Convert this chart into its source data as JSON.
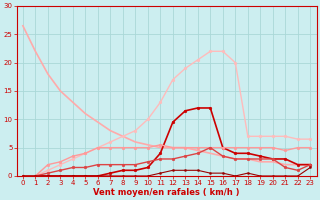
{
  "xlabel": "Vent moyen/en rafales ( km/h )",
  "xlim": [
    -0.5,
    23.5
  ],
  "ylim": [
    0,
    30
  ],
  "yticks": [
    0,
    5,
    10,
    15,
    20,
    25,
    30
  ],
  "xticks": [
    0,
    1,
    2,
    3,
    4,
    5,
    6,
    7,
    8,
    9,
    10,
    11,
    12,
    13,
    14,
    15,
    16,
    17,
    18,
    19,
    20,
    21,
    22,
    23
  ],
  "bg_color": "#cceef0",
  "grid_color": "#aad8d8",
  "series": [
    {
      "name": "light_pink_no_marker",
      "x": [
        0,
        1,
        2,
        3,
        4,
        5,
        6,
        7,
        8,
        9,
        10,
        11,
        12,
        13,
        14,
        15,
        16,
        17,
        18,
        19,
        20,
        21,
        22,
        23
      ],
      "y": [
        26.5,
        22,
        18,
        15,
        13,
        11,
        9.5,
        8,
        7,
        6,
        5.5,
        5,
        5,
        5,
        4.5,
        4,
        3.5,
        3,
        3,
        2.5,
        2.5,
        2,
        2,
        2
      ],
      "color": "#ffaaaa",
      "lw": 1.2,
      "marker": null,
      "ms": 0
    },
    {
      "name": "salmon_rising",
      "x": [
        0,
        1,
        2,
        3,
        4,
        5,
        6,
        7,
        8,
        9,
        10,
        11,
        12,
        13,
        14,
        15,
        16,
        17,
        18,
        19,
        20,
        21,
        22,
        23
      ],
      "y": [
        0,
        0,
        1,
        2,
        3,
        4,
        5,
        6,
        7,
        8,
        10,
        13,
        17,
        19,
        20.5,
        22,
        22,
        20,
        7,
        7,
        7,
        7,
        6.5,
        6.5
      ],
      "color": "#ffbbbb",
      "lw": 1.0,
      "marker": "o",
      "ms": 2.0
    },
    {
      "name": "dark_red_main",
      "x": [
        0,
        1,
        2,
        3,
        4,
        5,
        6,
        7,
        8,
        9,
        10,
        11,
        12,
        13,
        14,
        15,
        16,
        17,
        18,
        19,
        20,
        21,
        22,
        23
      ],
      "y": [
        0,
        0,
        0,
        0,
        0,
        0,
        0,
        0.5,
        1,
        1,
        1.5,
        4,
        9.5,
        11.5,
        12,
        12,
        5,
        4,
        4,
        3.5,
        3,
        3,
        2,
        2
      ],
      "color": "#cc0000",
      "lw": 1.2,
      "marker": "o",
      "ms": 2.0
    },
    {
      "name": "medium_pink_wavy",
      "x": [
        0,
        1,
        2,
        3,
        4,
        5,
        6,
        7,
        8,
        9,
        10,
        11,
        12,
        13,
        14,
        15,
        16,
        17,
        18,
        19,
        20,
        21,
        22,
        23
      ],
      "y": [
        0,
        0,
        2,
        2.5,
        3.5,
        4,
        5,
        5,
        5,
        5,
        5,
        5.5,
        5,
        5,
        5,
        5,
        5,
        5,
        5,
        5,
        5,
        4.5,
        5,
        5
      ],
      "color": "#ff9999",
      "lw": 1.0,
      "marker": "o",
      "ms": 2.0
    },
    {
      "name": "dark_red_low",
      "x": [
        0,
        1,
        2,
        3,
        4,
        5,
        6,
        7,
        8,
        9,
        10,
        11,
        12,
        13,
        14,
        15,
        16,
        17,
        18,
        19,
        20,
        21,
        22,
        23
      ],
      "y": [
        0,
        0,
        0.5,
        1,
        1.5,
        1.5,
        2,
        2,
        2,
        2,
        2.5,
        3,
        3,
        3.5,
        4,
        5,
        3.5,
        3,
        3,
        3,
        3,
        1.5,
        1,
        2
      ],
      "color": "#dd4444",
      "lw": 1.0,
      "marker": "o",
      "ms": 2.0
    },
    {
      "name": "dark_line_near_zero",
      "x": [
        0,
        1,
        2,
        3,
        4,
        5,
        6,
        7,
        8,
        9,
        10,
        11,
        12,
        13,
        14,
        15,
        16,
        17,
        18,
        19,
        20,
        21,
        22,
        23
      ],
      "y": [
        0,
        0,
        0,
        0,
        0,
        0,
        0,
        0,
        0,
        0,
        0,
        0.5,
        1,
        1,
        1,
        0.5,
        0.5,
        0,
        0.5,
        0,
        0,
        0,
        0,
        1.5
      ],
      "color": "#990000",
      "lw": 0.8,
      "marker": "o",
      "ms": 1.5
    }
  ]
}
